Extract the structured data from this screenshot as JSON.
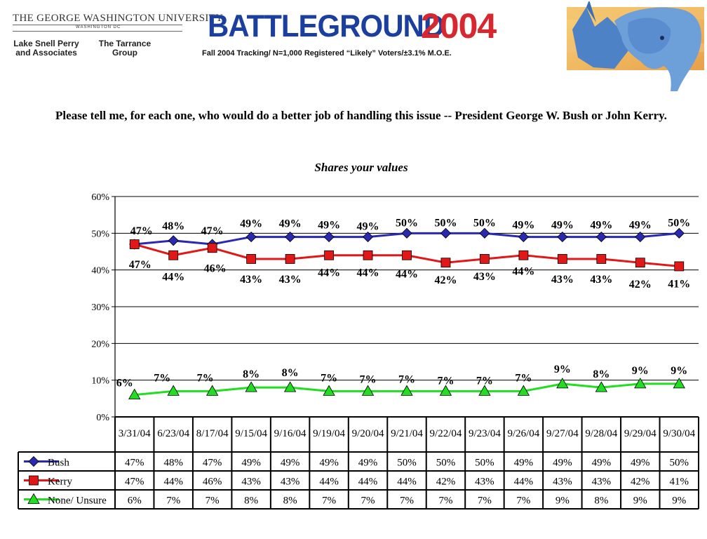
{
  "header": {
    "university": "THE GEORGE WASHINGTON UNIVERSITY",
    "city": "WASHINGTON DC",
    "firm1": "Lake Snell Perry and Associates",
    "firm2": "The Tarrance Group",
    "logo_word": "BATTLEGROUND",
    "logo_year": "2004",
    "tracking": "Fall 2004 Tracking/ N=1,000 Registered “Likely” Voters/±3.1% M.O.E."
  },
  "question": "Please tell me, for each one, who would do a better job of handling this issue  --  President George W. Bush or John Kerry.",
  "subtitle": "Shares your values",
  "chart_data": {
    "type": "line",
    "title": "Shares your values",
    "categories": [
      "3/31/04",
      "6/23/04",
      "8/17/04",
      "9/15/04",
      "9/16/04",
      "9/19/04",
      "9/20/04",
      "9/21/04",
      "9/22/04",
      "9/23/04",
      "9/26/04",
      "9/27/04",
      "9/28/04",
      "9/29/04",
      "9/30/04"
    ],
    "ylim": [
      0,
      60
    ],
    "yticks": [
      "0%",
      "10%",
      "20%",
      "30%",
      "40%",
      "50%",
      "60%"
    ],
    "grid": true,
    "legend": "data table below chart",
    "series": [
      {
        "name": "Bush",
        "color": "#2a2ab0",
        "marker": "diamond",
        "values": [
          47,
          48,
          47,
          49,
          49,
          49,
          49,
          50,
          50,
          50,
          49,
          49,
          49,
          49,
          50
        ],
        "labels": [
          "47%",
          "48%",
          "47%",
          "49%",
          "49%",
          "49%",
          "49%",
          "50%",
          "50%",
          "50%",
          "49%",
          "49%",
          "49%",
          "49%",
          "50%"
        ]
      },
      {
        "name": "Kerry",
        "color": "#e01818",
        "marker": "square",
        "values": [
          47,
          44,
          46,
          43,
          43,
          44,
          44,
          44,
          42,
          43,
          44,
          43,
          43,
          42,
          41
        ],
        "labels": [
          "47%",
          "44%",
          "46%",
          "43%",
          "43%",
          "44%",
          "44%",
          "44%",
          "42%",
          "43%",
          "44%",
          "43%",
          "43%",
          "42%",
          "41%"
        ]
      },
      {
        "name": "None/ Unsure",
        "color": "#22dd22",
        "marker": "triangle",
        "values": [
          6,
          7,
          7,
          8,
          8,
          7,
          7,
          7,
          7,
          7,
          7,
          9,
          8,
          9,
          9
        ],
        "labels": [
          "6%",
          "7%",
          "7%",
          "8%",
          "8%",
          "7%",
          "7%",
          "7%",
          "7%",
          "7%",
          "7%",
          "9%",
          "8%",
          "9%",
          "9%"
        ]
      }
    ]
  }
}
